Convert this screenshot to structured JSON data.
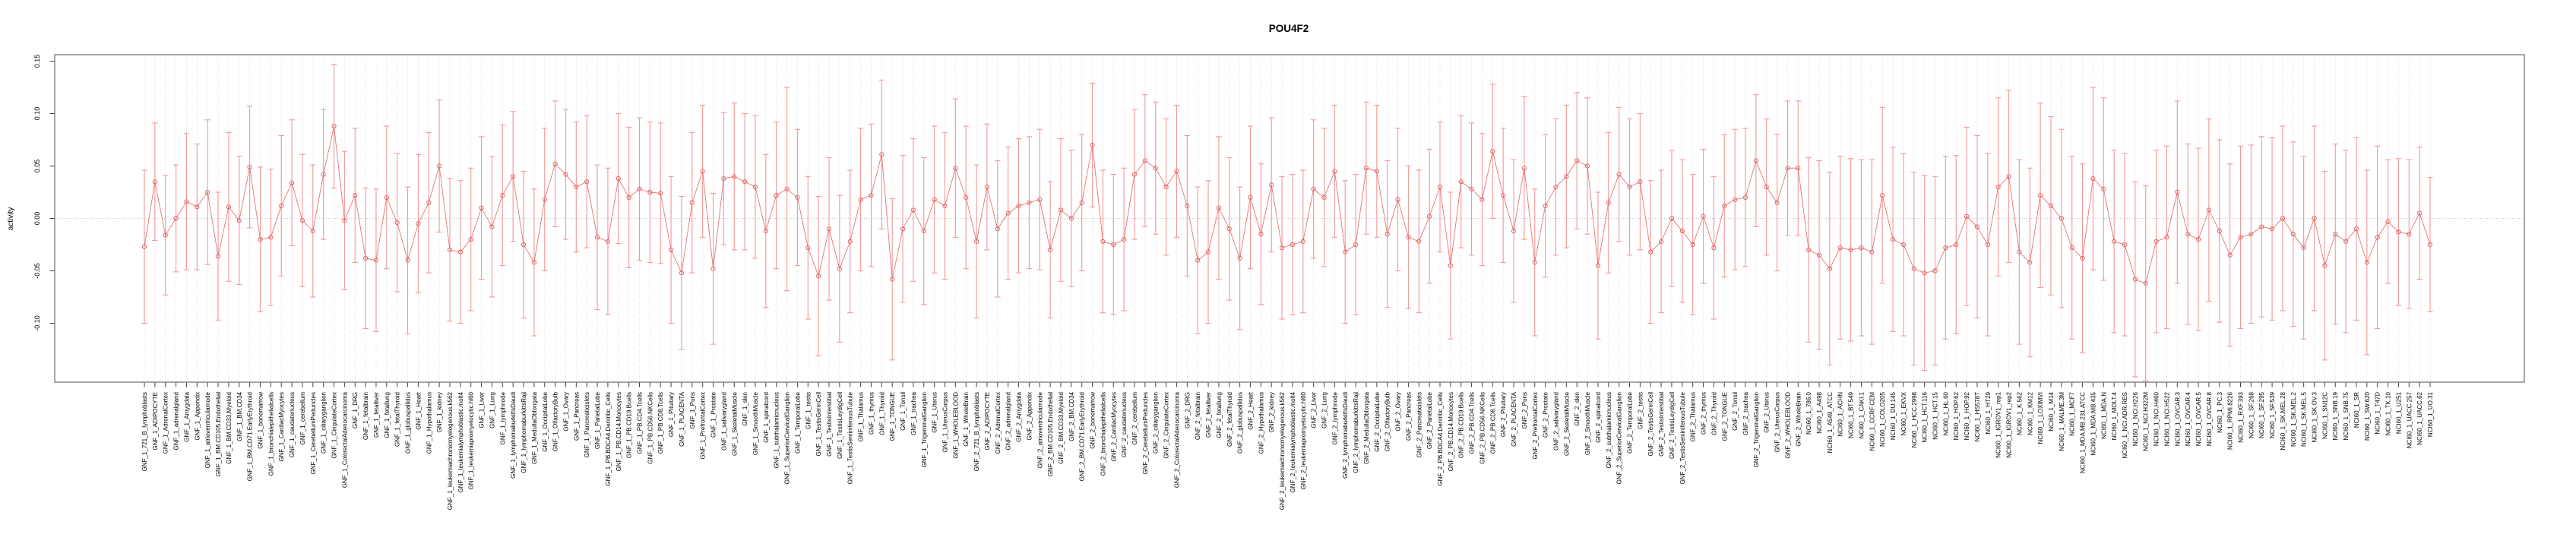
{
  "chart_data": {
    "type": "line",
    "subtype": "points-with-error-bars",
    "title": "POU4F2",
    "ylabel": "activity",
    "xlabel": "",
    "ylim": [
      -0.156,
      0.156
    ],
    "yticks": [
      0.15,
      0.1,
      0.05,
      0.0,
      -0.05,
      -0.1
    ],
    "ytick_labels": [
      "0.15",
      "0.10",
      "0.05",
      "0.00",
      "-0.05",
      "-0.10"
    ],
    "zero_line": true,
    "grid": "vertical-dotted-per-category",
    "legend": "none",
    "point_style": "open-circle",
    "colors": {
      "series": "#e26666",
      "error_bar": "#f29898",
      "grid": "#dcdcdc",
      "zero_line": "#c8c8c8",
      "box": "#808080",
      "tick": "#404040",
      "text": "#000000",
      "background": "#ffffff"
    },
    "categories": [
      "GNF_1_721_B_lymphoblasts",
      "GNF_1_ADIPOCYTE",
      "GNF_1_AdrenalCortex",
      "GNF_1_adrenalgland",
      "GNF_1_Amygdala",
      "GNF_1_Appendix",
      "GNF_1_atrioventricularnode",
      "GNF_1_BM.CD105.Endothelial",
      "GNF_1_BM.CD33.Myeloid",
      "GNF_1_BM.CD34",
      "GNF_1_BM.CD71.EarlyErythroid",
      "GNF_1_bonemarrow",
      "GNF_1_bronchialepithelialcells",
      "GNF_1_CardiacMyocytes",
      "GNF_1_caudatenucleus",
      "GNF_1_cerebellum",
      "GNF_1_CerebellumPeduncles",
      "GNF_1_ciliaryganglion",
      "GNF_1_CingulateCortex",
      "GNF_1_ColorectalAdenocarcinoma",
      "GNF_1_DRG",
      "GNF_1_fetalbrain",
      "GNF_1_fetalliver",
      "GNF_1_fetallung",
      "GNF_1_fetalThyroid",
      "GNF_1_globuspallidus",
      "GNF_1_Heart",
      "GNF_1_Hypothalamus",
      "GNF_1_kidney",
      "GNF_1_leukemiachronicmyelogenous.k562",
      "GNF_1_leukemialymphoblastic.molt4",
      "GNF_1_leukemiapromyelocytic.hl60",
      "GNF_1_Liver",
      "GNF_1_Lung",
      "GNF_1_lymphnode",
      "GNF_1_lymphomaburkittsDaudi",
      "GNF_1_lymphomaburkittsRaji",
      "GNF_1_MedullaOblongata",
      "GNF_1_OccipitalLobe",
      "GNF_1_OlfactoryBulb",
      "GNF_1_Ovary",
      "GNF_1_Pancreas",
      "GNF_1_Pancreaticislets",
      "GNF_1_ParietalLobe",
      "GNF_1_PB.BDCA4.Dentritic_Cells",
      "GNF_1_PB.CD14.Monocytes",
      "GNF_1_PB.CD19.Bcells",
      "GNF_1_PB.CD4.Tcells",
      "GNF_1_PB.CD56.NKCells",
      "GNF_1_PB.CD8.Tcells",
      "GNF_1_Pituitary",
      "GNF_1_PLACENTA",
      "GNF_1_Pons",
      "GNF_1_PrefrontalCortex",
      "GNF_1_Prostate",
      "GNF_1_salivarygland",
      "GNF_1_SkeletalMuscle",
      "GNF_1_skin",
      "GNF_1_SmoothMuscle",
      "GNF_1_spinalcord",
      "GNF_1_subthalamicnucleus",
      "GNF_1_SuperiorCervicalGanglion",
      "GNF_1_TemporalLobe",
      "GNF_1_testis",
      "GNF_1_TestisGermCell",
      "GNF_1_TestisInterstitial",
      "GNF_1_TestisLeydigCell",
      "GNF_1_TestisSeminiferousTubule",
      "GNF_1_Thalamus",
      "GNF_1_thymus",
      "GNF_1_Thyroid",
      "GNF_1_TONGUE",
      "GNF_1_Tonsil",
      "GNF_1_trachea",
      "GNF_1_TrigeminalGanglion",
      "GNF_1_Uterus",
      "GNF_1_UterusCorpus",
      "GNF_1_WHOLEBLOOD",
      "GNF_1_WholeBrain",
      "GNF_2_721_B_lymphoblasts",
      "GNF_2_ADIPOCYTE",
      "GNF_2_AdrenalCortex",
      "GNF_2_adrenalgland",
      "GNF_2_Amygdala",
      "GNF_2_Appendix",
      "GNF_2_atrioventricularnode",
      "GNF_2_BM.CD105.Endothelial",
      "GNF_2_BM.CD33.Myeloid",
      "GNF_2_BM.CD34",
      "GNF_2_BM.CD71.EarlyErythroid",
      "GNF_2_bonemarrow",
      "GNF_2_bronchialepithelialcells",
      "GNF_2_CardiacMyocytes",
      "GNF_2_caudatenucleus",
      "GNF_2_cerebellum",
      "GNF_2_CerebellumPeduncles",
      "GNF_2_ciliaryganglion",
      "GNF_2_CingulateCortex",
      "GNF_2_ColorectalAdenocarcinoma",
      "GNF_2_DRG",
      "GNF_2_fetalbrain",
      "GNF_2_fetalliver",
      "GNF_2_fetallung",
      "GNF_2_fetalThyroid",
      "GNF_2_globuspallidus",
      "GNF_2_Heart",
      "GNF_2_Hypothalamus",
      "GNF_2_kidney",
      "GNF_2_leukemiachronicmyelogenous.k562",
      "GNF_2_leukemialymphoblastic.molt4",
      "GNF_2_leukemiapromyelocytic.hl60",
      "GNF_2_Liver",
      "GNF_2_Lung",
      "GNF_2_lymphnode",
      "GNF_2_lymphomaburkittsDaudi",
      "GNF_2_lymphomaburkittsRaji",
      "GNF_2_MedullaOblongata",
      "GNF_2_OccipitalLobe",
      "GNF_2_OlfactoryBulb",
      "GNF_2_Ovary",
      "GNF_2_Pancreas",
      "GNF_2_Pancreaticislets",
      "GNF_2_ParietalLobe",
      "GNF_2_PB.BDCA4.Dentritic_Cells",
      "GNF_2_PB.CD14.Monocytes",
      "GNF_2_PB.CD19.Bcells",
      "GNF_2_PB.CD4.Tcells",
      "GNF_2_PB.CD56.NKCells",
      "GNF_2_PB.CD8.Tcells",
      "GNF_2_Pituitary",
      "GNF_2_PLACENTA",
      "GNF_2_Pons",
      "GNF_2_PrefrontalCortex",
      "GNF_2_Prostate",
      "GNF_2_salivarygland",
      "GNF_2_SkeletalMuscle",
      "GNF_2_skin",
      "GNF_2_SmoothMuscle",
      "GNF_2_spinalcord",
      "GNF_2_subthalamicnucleus",
      "GNF_2_SuperiorCervicalGanglion",
      "GNF_2_TemporalLobe",
      "GNF_2_testis",
      "GNF_2_TestisGermCell",
      "GNF_2_TestisInterstitial",
      "GNF_2_TestisLeydigCell",
      "GNF_2_TestisSeminiferousTubule",
      "GNF_2_Thalamus",
      "GNF_2_thymus",
      "GNF_2_Thyroid",
      "GNF_2_TONGUE",
      "GNF_2_Tonsil",
      "GNF_2_trachea",
      "GNF_2_TrigeminalGanglion",
      "GNF_2_Uterus",
      "GNF_2_UterusCorpus",
      "GNF_2_WHOLEBLOOD",
      "GNF_2_WholeBrain",
      "NCI60_1_786.0",
      "NCI60_1_A498",
      "NCI60_1_A549_ATCC",
      "NCI60_1_ACHN",
      "NCI60_1_BT.549",
      "NCI60_1_CAKI.1",
      "NCI60_1_CCRF.CEM",
      "NCI60_1_COLO205",
      "NCI60_1_DU.145",
      "NCI60_1_EKVX",
      "NCI60_1_HCC.2998",
      "NCI60_1_HCT.116",
      "NCI60_1_HCT.15",
      "NCI60_1_HL.60",
      "NCI60_1_HOP.62",
      "NCI60_1_HOP.92",
      "NCI60_1_HS578T",
      "NCI60_1_HT29",
      "NCI60_1_IGROV1_rep1",
      "NCI60_1_IGROV1_rep2",
      "NCI60_1_K.562",
      "NCI60_1_KM12",
      "NCI60_1_LOXIMVI",
      "NCI60_1_M14",
      "NCI60_1_MALME.3M",
      "NCI60_1_MCF7",
      "NCI60_1_MDA.MB.231.ATCC",
      "NCI60_1_MDA.MB.435",
      "NCI60_1_MDA.N",
      "NCI60_1_MOLT.4",
      "NCI60_1_NCI.ADR.RES",
      "NCI60_1_NCI.H226",
      "NCI60_1_NCI.H322M",
      "NCI60_1_NCI.H460",
      "NCI60_1_NCI.H522",
      "NCI60_1_OVCAR.3",
      "NCI60_1_OVCAR.4",
      "NCI60_1_OVCAR.5",
      "NCI60_1_OVCAR.8",
      "NCI60_1_PC.3",
      "NCI60_1_RPMI.8226",
      "NCI60_1_RXF.393",
      "NCI60_1_SF.268",
      "NCI60_1_SF.295",
      "NCI60_1_SF.539",
      "NCI60_1_SK.MEL.28",
      "NCI60_1_SK.MEL.2",
      "NCI60_1_SK.MEL.5",
      "NCI60_1_SK.OV.3",
      "NCI60_1_SN12C",
      "NCI60_1_SNB.19",
      "NCI60_1_SNB.75",
      "NCI60_1_SR",
      "NCI60_1_SW.620",
      "NCI60_1_T47D",
      "NCI60_1_TK.10",
      "NCI60_1_U251",
      "NCI60_1_UACC.257",
      "NCI60_1_UACC.62",
      "NCI60_1_UO.31"
    ],
    "series": [
      {
        "name": "activity",
        "values": [
          -0.027,
          0.035,
          -0.016,
          0.0,
          0.016,
          0.011,
          0.025,
          -0.036,
          0.011,
          -0.002,
          0.049,
          -0.02,
          -0.018,
          0.012,
          0.034,
          -0.002,
          -0.012,
          0.042,
          0.088,
          -0.002,
          0.022,
          -0.038,
          -0.04,
          0.02,
          -0.004,
          -0.04,
          -0.005,
          0.015,
          0.05,
          -0.03,
          -0.032,
          -0.02,
          0.01,
          -0.008,
          0.022,
          0.04,
          -0.025,
          -0.042,
          0.018,
          0.052,
          0.042,
          0.03,
          0.035,
          -0.018,
          -0.022,
          0.038,
          0.02,
          0.028,
          0.025,
          0.024,
          -0.03,
          -0.052,
          0.015,
          0.045,
          -0.048,
          0.038,
          0.04,
          0.035,
          0.03,
          -0.012,
          0.022,
          0.028,
          0.02,
          -0.028,
          -0.055,
          -0.01,
          -0.048,
          -0.022,
          0.018,
          0.022,
          0.061,
          -0.058,
          -0.01,
          0.008,
          -0.012,
          0.018,
          0.012,
          0.048,
          0.02,
          -0.022,
          0.03,
          -0.01,
          0.005,
          0.012,
          0.015,
          0.018,
          -0.03,
          0.008,
          0.0,
          0.015,
          0.07,
          -0.022,
          -0.025,
          -0.02,
          0.042,
          0.055,
          0.048,
          0.03,
          0.045,
          0.012,
          -0.04,
          -0.032,
          0.01,
          -0.01,
          -0.038,
          0.02,
          -0.015,
          0.032,
          -0.028,
          -0.025,
          -0.022,
          0.028,
          0.02,
          0.045,
          -0.032,
          -0.025,
          0.048,
          0.045,
          -0.015,
          0.018,
          -0.018,
          -0.022,
          0.002,
          0.03,
          -0.045,
          0.035,
          0.028,
          0.018,
          0.064,
          0.022,
          -0.012,
          0.048,
          -0.042,
          0.012,
          0.03,
          0.04,
          0.055,
          0.05,
          -0.045,
          0.015,
          0.042,
          0.03,
          0.035,
          -0.032,
          -0.022,
          0.0,
          -0.012,
          -0.025,
          0.002,
          -0.028,
          0.012,
          0.018,
          0.02,
          0.055,
          0.03,
          0.015,
          0.048,
          0.048,
          -0.03,
          -0.035,
          -0.048,
          -0.028,
          -0.03,
          -0.028,
          -0.032,
          0.022,
          -0.02,
          -0.025,
          -0.048,
          -0.052,
          -0.05,
          -0.028,
          -0.025,
          0.002,
          -0.008,
          -0.025,
          0.03,
          0.04,
          -0.032,
          -0.042,
          0.022,
          0.012,
          0.0,
          -0.028,
          -0.038,
          0.038,
          0.028,
          -0.022,
          -0.025,
          -0.058,
          -0.062,
          -0.022,
          -0.018,
          0.025,
          -0.015,
          -0.02,
          0.008,
          -0.012,
          -0.035,
          -0.018,
          -0.015,
          -0.008,
          -0.01,
          0.0,
          -0.015,
          -0.028,
          0.0,
          -0.045,
          -0.015,
          -0.022,
          -0.01,
          -0.042,
          -0.018,
          -0.003,
          -0.013,
          -0.015,
          0.005,
          -0.025
        ],
        "ci_halfwidth": [
          0.073,
          0.056,
          0.057,
          0.051,
          0.065,
          0.06,
          0.069,
          0.061,
          0.071,
          0.061,
          0.058,
          0.069,
          0.065,
          0.067,
          0.06,
          0.063,
          0.063,
          0.062,
          0.059,
          0.066,
          0.064,
          0.067,
          0.068,
          0.068,
          0.066,
          0.07,
          0.066,
          0.067,
          0.063,
          0.068,
          0.068,
          0.068,
          0.068,
          0.067,
          0.067,
          0.062,
          0.07,
          0.07,
          0.068,
          0.06,
          0.062,
          0.062,
          0.063,
          0.069,
          0.07,
          0.062,
          0.067,
          0.068,
          0.067,
          0.067,
          0.07,
          0.073,
          0.067,
          0.063,
          0.072,
          0.063,
          0.07,
          0.065,
          0.068,
          0.073,
          0.07,
          0.097,
          0.065,
          0.068,
          0.076,
          0.068,
          0.07,
          0.068,
          0.068,
          0.068,
          0.071,
          0.077,
          0.07,
          0.068,
          0.07,
          0.07,
          0.07,
          0.066,
          0.068,
          0.073,
          0.06,
          0.065,
          0.063,
          0.064,
          0.063,
          0.067,
          0.065,
          0.068,
          0.065,
          0.065,
          0.059,
          0.068,
          0.067,
          0.068,
          0.062,
          0.063,
          0.063,
          0.065,
          0.063,
          0.067,
          0.07,
          0.068,
          0.068,
          0.068,
          0.068,
          0.068,
          0.067,
          0.064,
          0.068,
          0.067,
          0.068,
          0.066,
          0.066,
          0.063,
          0.068,
          0.067,
          0.063,
          0.063,
          0.07,
          0.068,
          0.068,
          0.068,
          0.064,
          0.062,
          0.07,
          0.063,
          0.063,
          0.063,
          0.064,
          0.064,
          0.068,
          0.068,
          0.07,
          0.068,
          0.065,
          0.068,
          0.065,
          0.065,
          0.07,
          0.067,
          0.064,
          0.065,
          0.065,
          0.068,
          0.068,
          0.065,
          0.068,
          0.067,
          0.064,
          0.068,
          0.068,
          0.067,
          0.066,
          0.063,
          0.065,
          0.065,
          0.064,
          0.064,
          0.088,
          0.09,
          0.092,
          0.087,
          0.087,
          0.084,
          0.088,
          0.084,
          0.088,
          0.087,
          0.092,
          0.093,
          0.09,
          0.087,
          0.085,
          0.085,
          0.087,
          0.087,
          0.085,
          0.082,
          0.088,
          0.09,
          0.088,
          0.085,
          0.085,
          0.087,
          0.09,
          0.087,
          0.087,
          0.087,
          0.087,
          0.093,
          0.093,
          0.087,
          0.087,
          0.087,
          0.086,
          0.087,
          0.087,
          0.087,
          0.087,
          0.087,
          0.085,
          0.086,
          0.087,
          0.088,
          0.088,
          0.087,
          0.088,
          0.09,
          0.086,
          0.087,
          0.087,
          0.088,
          0.087,
          0.059,
          0.07,
          0.071,
          0.063,
          0.064
        ]
      }
    ]
  }
}
